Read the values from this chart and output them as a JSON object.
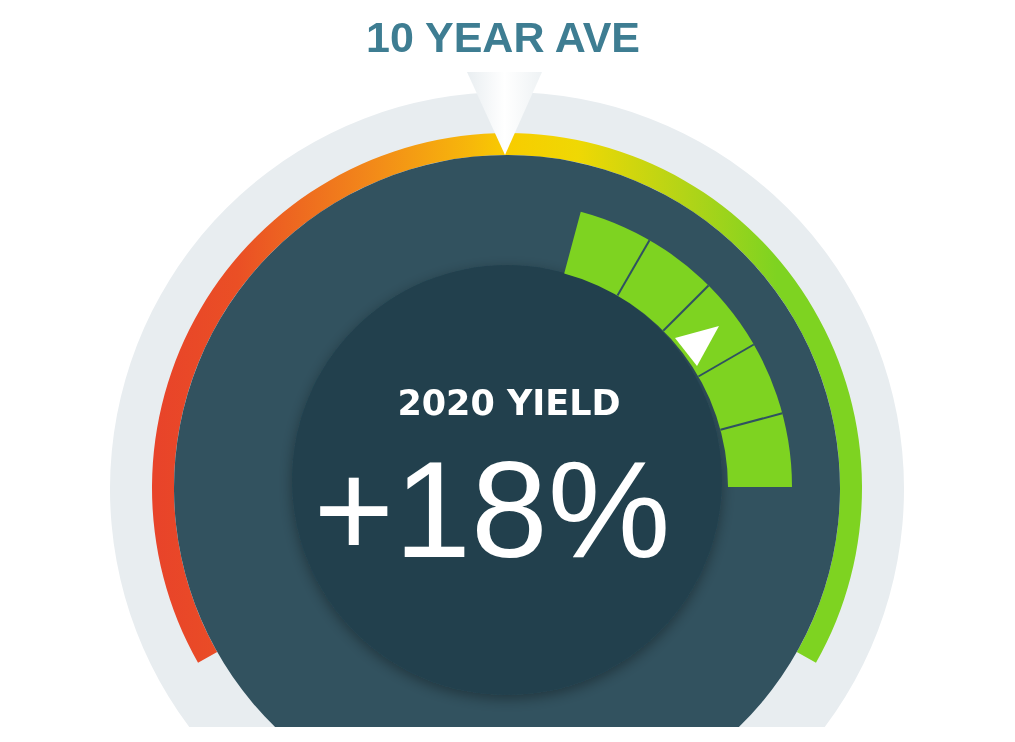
{
  "chart_data": {
    "type": "other",
    "categories": [
      "2020 YIELD"
    ],
    "values": [
      18
    ],
    "value_labels": [
      "+18%"
    ],
    "annotations": [
      "10 YEAR AVE"
    ]
  }
}
